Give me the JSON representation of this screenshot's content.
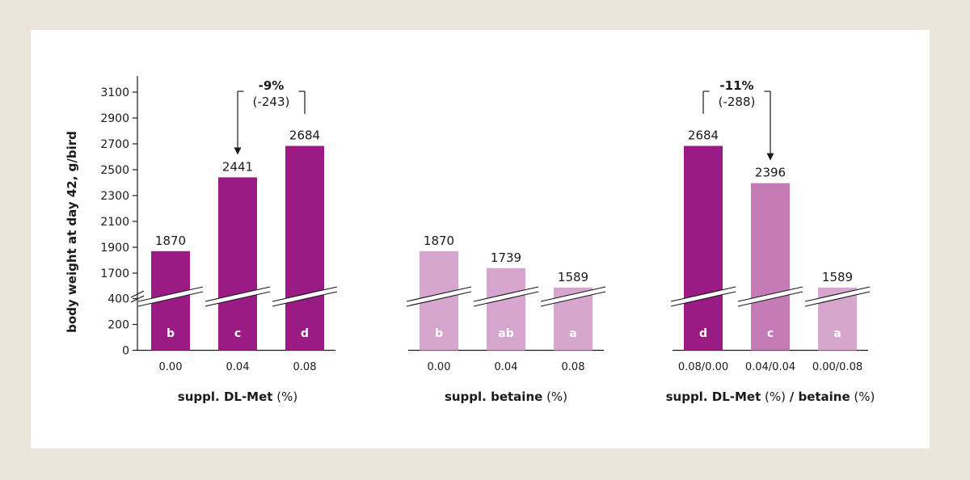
{
  "chart_data": {
    "type": "bar",
    "ylabel": "body weight at day 42, g/bird",
    "y_axis": {
      "broken": true,
      "lower_segment": {
        "range": [
          0,
          400
        ],
        "ticks": [
          0,
          200,
          400
        ]
      },
      "upper_segment": {
        "range": [
          1500,
          3200
        ],
        "ticks": [
          1700,
          1900,
          2100,
          2300,
          2500,
          2700,
          2900,
          3100
        ]
      }
    },
    "groups": [
      {
        "x_axis_bold": "suppl. DL-Met",
        "x_axis_rest": " (%)",
        "categories": [
          "0.00",
          "0.04",
          "0.08"
        ],
        "values": [
          1870,
          2441,
          2684
        ],
        "value_labels": [
          "1870",
          "2441",
          "2684"
        ],
        "letters": [
          "b",
          "c",
          "d"
        ],
        "colors": [
          "#9b1b84",
          "#9b1b84",
          "#9b1b84"
        ],
        "annotation": {
          "percent": "-9%",
          "delta": "(-243)",
          "from_index": 2,
          "to_index": 1
        }
      },
      {
        "x_axis_bold": "suppl. betaine",
        "x_axis_rest": " (%)",
        "categories": [
          "0.00",
          "0.04",
          "0.08"
        ],
        "values": [
          1870,
          1739,
          1589
        ],
        "value_labels": [
          "1870",
          "1739",
          "1589"
        ],
        "letters": [
          "b",
          "ab",
          "a"
        ],
        "colors": [
          "#d7a6cf",
          "#d7a6cf",
          "#d7a6cf"
        ]
      },
      {
        "x_axis_parts": [
          {
            "text": "suppl. DL-Met",
            "bold": true
          },
          {
            "text": " (%) ",
            "bold": false
          },
          {
            "text": "/ betaine",
            "bold": true
          },
          {
            "text": " (%)",
            "bold": false
          }
        ],
        "categories": [
          "0.08/0.00",
          "0.04/0.04",
          "0.00/0.08"
        ],
        "values": [
          2684,
          2396,
          1589
        ],
        "value_labels": [
          "2684",
          "2396",
          "1589"
        ],
        "letters": [
          "d",
          "c",
          "a"
        ],
        "colors": [
          "#9b1b84",
          "#c47bb6",
          "#d7a6cf"
        ],
        "annotation": {
          "percent": "-11%",
          "delta": "(-288)",
          "from_index": 0,
          "to_index": 1
        }
      }
    ]
  }
}
